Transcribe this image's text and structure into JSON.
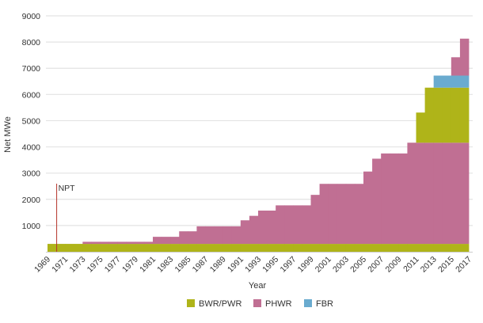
{
  "chart_data": {
    "type": "area",
    "stacked": true,
    "step": true,
    "xlabel": "Year",
    "ylabel": "Net MWe",
    "xlim": [
      1969,
      2017
    ],
    "ylim": [
      0,
      9000
    ],
    "x_ticks": [
      "1969",
      "1971",
      "1973",
      "1975",
      "1977",
      "1979",
      "1981",
      "1983",
      "1985",
      "1987",
      "1989",
      "1991",
      "1993",
      "1995",
      "1997",
      "1999",
      "2001",
      "2003",
      "2005",
      "2007",
      "2009",
      "2011",
      "2013",
      "2015",
      "2017"
    ],
    "y_ticks": [
      "1000",
      "2000",
      "3000",
      "4000",
      "5000",
      "6000",
      "7000",
      "8000",
      "9000"
    ],
    "grid": true,
    "legend_position": "bottom",
    "legend": [
      {
        "name": "BWR/PWR",
        "color": "#afb419"
      },
      {
        "name": "PHWR",
        "color": "#c06f93"
      },
      {
        "name": "FBR",
        "color": "#6aabcf"
      }
    ],
    "layers": [
      {
        "series": "BWR/PWR",
        "color": "#afb419",
        "steps": [
          [
            1969,
            300
          ]
        ]
      },
      {
        "series": "PHWR",
        "color": "#c06f93",
        "steps": [
          [
            1969,
            0
          ],
          [
            1973,
            80
          ],
          [
            1981,
            270
          ],
          [
            1984,
            480
          ],
          [
            1986,
            670
          ],
          [
            1991,
            900
          ],
          [
            1992,
            1070
          ],
          [
            1993,
            1270
          ],
          [
            1995,
            1470
          ],
          [
            1999,
            1870
          ],
          [
            2000,
            2290
          ],
          [
            2005,
            2760
          ],
          [
            2006,
            3250
          ],
          [
            2007,
            3450
          ],
          [
            2010,
            3860
          ]
        ]
      },
      {
        "series": "BWR/PWR",
        "color": "#afb419",
        "steps": [
          [
            1969,
            0
          ],
          [
            2011,
            1150
          ],
          [
            2012,
            2100
          ]
        ]
      },
      {
        "series": "FBR",
        "color": "#6aabcf",
        "steps": [
          [
            1969,
            0
          ],
          [
            2013,
            460
          ]
        ]
      },
      {
        "series": "PHWR",
        "color": "#c06f93",
        "steps": [
          [
            1969,
            0
          ],
          [
            2015,
            700
          ],
          [
            2016,
            1410
          ]
        ]
      }
    ],
    "annotations": [
      {
        "label": "NPT",
        "x": 1970,
        "color": "#b5342a"
      }
    ]
  }
}
